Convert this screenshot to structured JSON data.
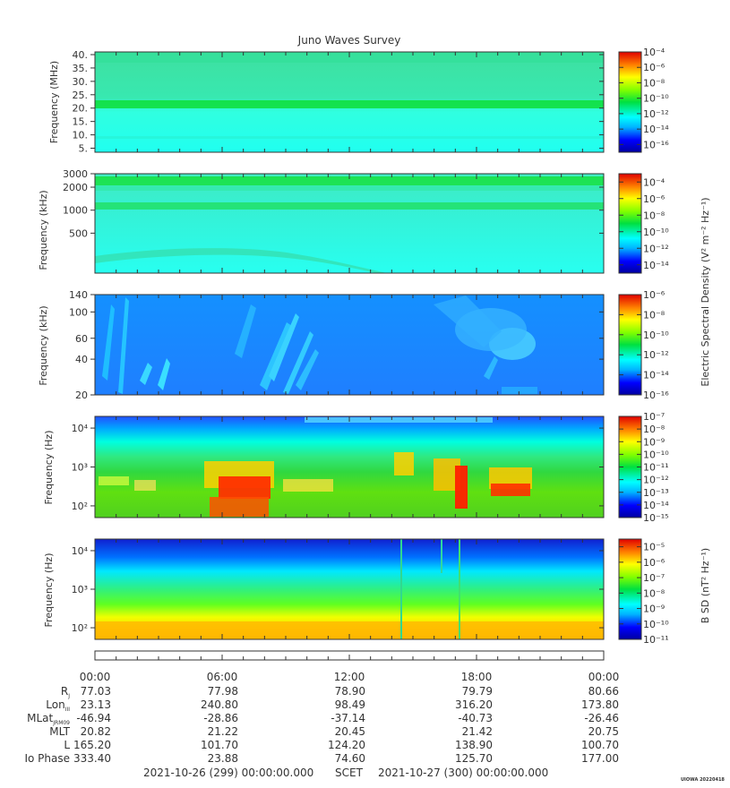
{
  "chart_data": {
    "type": "heatmap",
    "title": "Juno Waves Survey",
    "panels": [
      {
        "id": "p1",
        "ylabel": "Frequency (MHz)",
        "yscale": "linear",
        "ylim": [
          3.5,
          41
        ],
        "yticks": [
          5,
          10,
          15,
          20,
          25,
          30,
          35,
          40
        ],
        "ytick_labels": [
          "5.",
          "10.",
          "15.",
          "20.",
          "25.",
          "30.",
          "35.",
          "40."
        ],
        "colorbar": {
          "min_exp": -17,
          "max_exp": -4,
          "tick_exps": [
            -4,
            -6,
            -8,
            -10,
            -12,
            -14,
            -16
          ]
        },
        "colorbar_label": ""
      },
      {
        "id": "p2",
        "ylabel": "Frequency (kHz)",
        "yscale": "log",
        "ylim": [
          150,
          3000
        ],
        "yticks": [
          500,
          1000,
          2000,
          3000
        ],
        "ytick_labels": [
          "500",
          "1000",
          "2000",
          "3000"
        ],
        "colorbar": {
          "min_exp": -15,
          "max_exp": -3,
          "tick_exps": [
            -4,
            -6,
            -8,
            -10,
            -12,
            -14
          ]
        },
        "colorbar_label": ""
      },
      {
        "id": "p3",
        "ylabel": "Frequency (kHz)",
        "yscale": "log",
        "ylim": [
          20,
          140
        ],
        "yticks": [
          20,
          40,
          60,
          100,
          140
        ],
        "ytick_labels": [
          "20",
          "40",
          "60",
          "100",
          "140"
        ],
        "colorbar": {
          "min_exp": -16,
          "max_exp": -6,
          "tick_exps": [
            -6,
            -8,
            -10,
            -12,
            -14,
            -16
          ]
        },
        "colorbar_label": "Electric Spectral Density (V² m⁻² Hz⁻¹)"
      },
      {
        "id": "p4",
        "ylabel": "Frequency (Hz)",
        "yscale": "log",
        "ylim": [
          50,
          20000
        ],
        "yticks": [
          100,
          1000,
          10000
        ],
        "ytick_labels": [
          "10²",
          "10³",
          "10⁴"
        ],
        "colorbar": {
          "min_exp": -15,
          "max_exp": -7,
          "tick_exps": [
            -7,
            -8,
            -9,
            -10,
            -11,
            -12,
            -13,
            -14,
            -15
          ]
        },
        "colorbar_label": ""
      },
      {
        "id": "p5",
        "ylabel": "Frequency (Hz)",
        "yscale": "log",
        "ylim": [
          50,
          20000
        ],
        "yticks": [
          100,
          1000,
          10000
        ],
        "ytick_labels": [
          "10²",
          "10³",
          "10⁴"
        ],
        "colorbar": {
          "min_exp": -11,
          "max_exp": -4.5,
          "tick_exps": [
            -5,
            -6,
            -7,
            -8,
            -9,
            -10,
            -11
          ]
        },
        "colorbar_label": "B SD (nT² Hz⁻¹)"
      }
    ],
    "x": {
      "tick_labels": [
        "00:00",
        "06:00",
        "12:00",
        "18:00",
        "00:00"
      ],
      "tick_hours": [
        0,
        6,
        12,
        18,
        24
      ]
    },
    "ephemeris": {
      "labels": [
        "R",
        "Lon",
        "MLat",
        "MLT",
        "L",
        "Io Phase"
      ],
      "label_subscripts": [
        "J",
        "III",
        "JRM09",
        "",
        "",
        ""
      ],
      "rows": [
        [
          "77.03",
          "77.98",
          "78.90",
          "79.79",
          "80.66"
        ],
        [
          "23.13",
          "240.80",
          "98.49",
          "316.20",
          "173.80"
        ],
        [
          "-46.94",
          "-28.86",
          "-37.14",
          "-40.73",
          "-26.46"
        ],
        [
          "20.82",
          "21.22",
          "20.45",
          "21.42",
          "20.75"
        ],
        [
          "165.20",
          "101.70",
          "124.20",
          "138.90",
          "100.70"
        ],
        [
          "333.40",
          "23.88",
          "74.60",
          "125.70",
          "177.00"
        ]
      ]
    },
    "footer": {
      "start": "2021-10-26 (299) 00:00:00.000",
      "scet": "SCET",
      "end": "2021-10-27 (300) 00:00:00.000",
      "stamp": "UIOWA 20220418"
    }
  }
}
